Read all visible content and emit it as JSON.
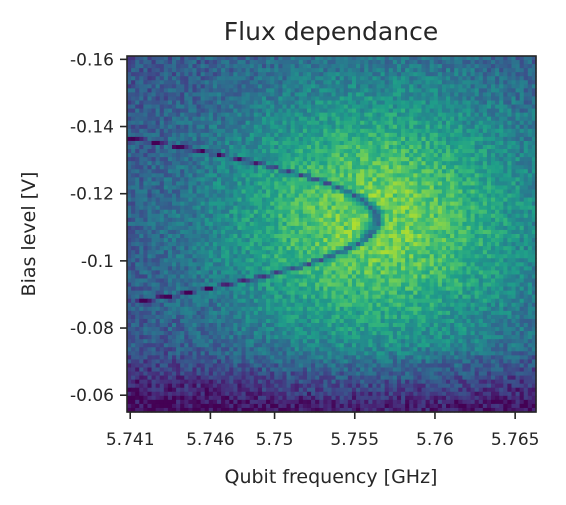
{
  "chart_data": {
    "type": "heatmap",
    "title": "Flux dependance",
    "xlabel": "Qubit frequency [GHz]",
    "ylabel": "Bias level [V]",
    "xlim": [
      5.7408,
      5.7663
    ],
    "ylim": [
      -0.055,
      -0.161
    ],
    "x_ticks": [
      5.741,
      5.746,
      5.75,
      5.755,
      5.76,
      5.765
    ],
    "x_tick_labels": [
      "5.741",
      "5.746",
      "5.75",
      "5.755",
      "5.76",
      "5.765"
    ],
    "y_ticks": [
      -0.16,
      -0.14,
      -0.12,
      -0.1,
      -0.08,
      -0.06
    ],
    "y_tick_labels": [
      "-0.16",
      "-0.14",
      "-0.12",
      "-0.1",
      "-0.08",
      "-0.06"
    ],
    "colormap": "viridis",
    "colorbar": false,
    "grid": false,
    "features": {
      "resonance_vertex": {
        "x": 5.7564,
        "y": -0.112
      },
      "resonance_branch_ends": [
        {
          "x": 5.741,
          "y": -0.1375
        },
        {
          "x": 5.741,
          "y": -0.0885
        }
      ]
    },
    "colors": {
      "background_high": "#b5de2b",
      "background_mid": "#21918c",
      "background_low": "#3b528b",
      "resonance_line": "#404387"
    }
  }
}
